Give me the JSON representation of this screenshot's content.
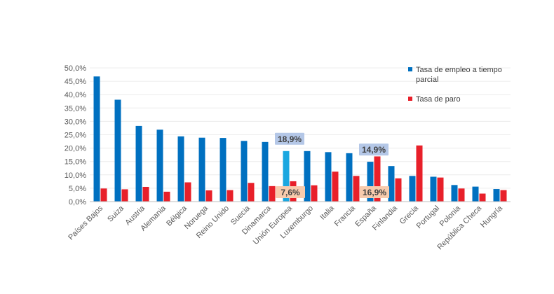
{
  "chart_data": {
    "type": "bar",
    "title": "",
    "xlabel": "",
    "ylabel": "",
    "ylim": [
      0,
      50
    ],
    "yticks": [
      "0,0%",
      "5,0%",
      "10,0%",
      "15,0%",
      "20,0%",
      "25,0%",
      "30,0%",
      "35,0%",
      "40,0%",
      "45,0%",
      "50,0%"
    ],
    "ytick_values": [
      0,
      5,
      10,
      15,
      20,
      25,
      30,
      35,
      40,
      45,
      50
    ],
    "grid": true,
    "legend_position": "top-right",
    "categories": [
      "Países Bajos",
      "Suiza",
      "Austria",
      "Alemania",
      "Bélgica",
      "Noruega",
      "Reino Unido",
      "Suecia",
      "Dinamarca",
      "Unión Europea",
      "Luxemburgo",
      "Italia",
      "Francia",
      "España",
      "Finlandia",
      "Grecia",
      "Portugal",
      "Polonia",
      "República Checa",
      "Hungría"
    ],
    "series": [
      {
        "name": "Tasa de empleo a tiempo parcial",
        "legend_lines": [
          "Tasa de empleo a tiempo",
          "parcial"
        ],
        "color": "#0070c0",
        "values": [
          46.8,
          38.1,
          28.3,
          26.9,
          24.4,
          23.9,
          23.8,
          22.7,
          22.3,
          18.9,
          18.9,
          18.5,
          18.1,
          14.9,
          13.3,
          9.6,
          9.3,
          6.2,
          5.6,
          4.7
        ]
      },
      {
        "name": "Tasa de paro",
        "legend_lines": [
          "Tasa de paro"
        ],
        "color": "#e8202a",
        "values": [
          4.9,
          4.6,
          5.5,
          3.7,
          7.2,
          4.2,
          4.3,
          7.0,
          5.8,
          7.6,
          6.1,
          11.2,
          9.6,
          16.9,
          8.7,
          21.0,
          9.0,
          4.9,
          3.0,
          4.3
        ]
      }
    ],
    "highlight": {
      "category_index": 9,
      "series_index": 0,
      "color": "#1aa7e0"
    },
    "callouts": [
      {
        "text": "18,9%",
        "category_index": 9,
        "series_index": 0,
        "style": "blue"
      },
      {
        "text": "7,6%",
        "category_index": 9,
        "series_index": 1,
        "style": "orange"
      },
      {
        "text": "14,9%",
        "category_index": 13,
        "series_index": 0,
        "style": "blue"
      },
      {
        "text": "16,9%",
        "category_index": 13,
        "series_index": 1,
        "style": "orange"
      }
    ],
    "callout_colors": {
      "blue": "#b4c7e7",
      "orange": "#f8cbad"
    },
    "grid_color": "#ececec",
    "axis_color": "#bfbfbf"
  }
}
